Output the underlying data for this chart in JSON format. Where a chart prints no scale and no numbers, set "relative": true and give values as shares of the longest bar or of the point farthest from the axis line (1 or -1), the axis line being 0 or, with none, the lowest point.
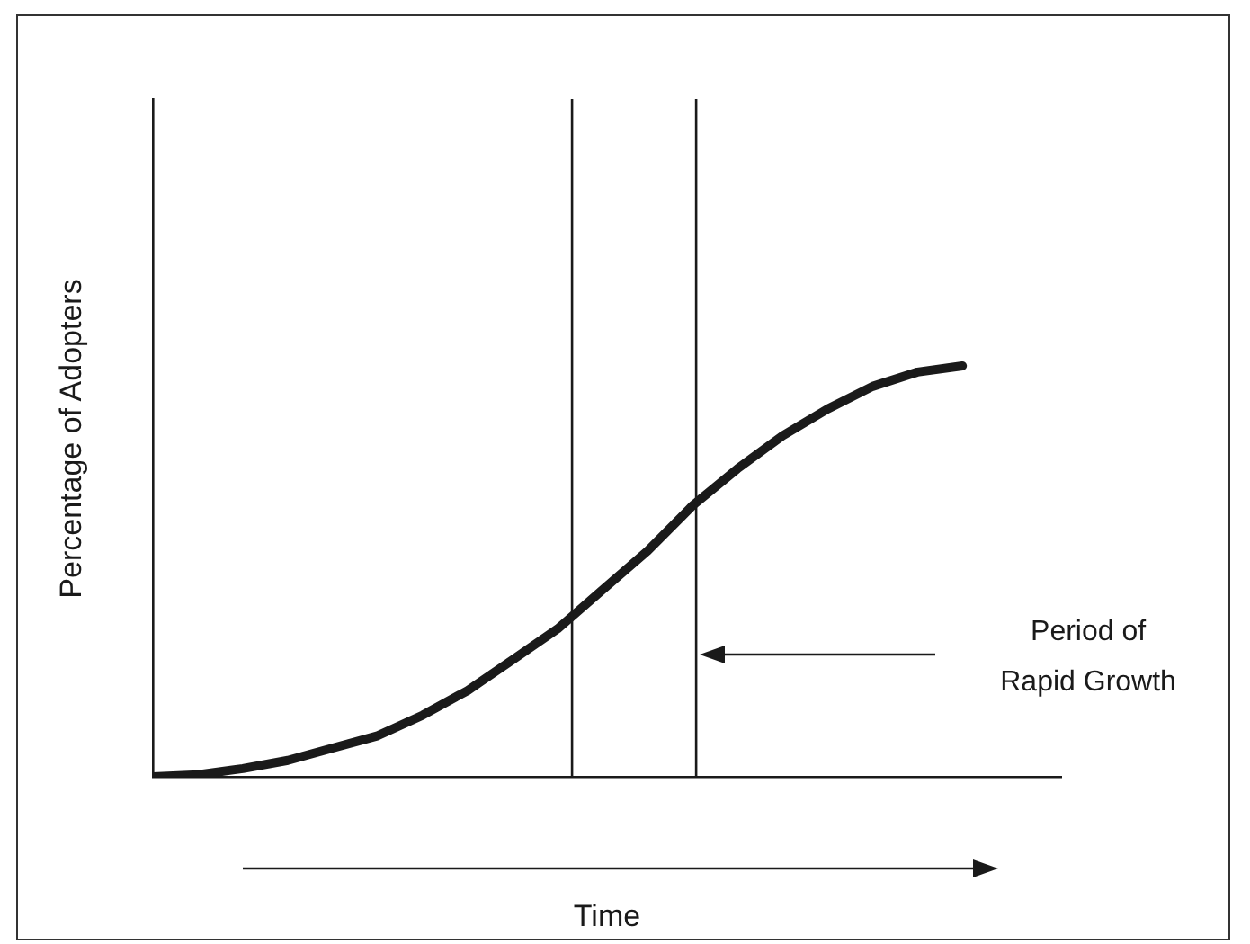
{
  "chart_data": {
    "type": "line",
    "relative": true,
    "xlabel": "Time",
    "ylabel": "Percentage of Adopters",
    "categories": [
      null,
      null,
      null,
      null,
      null,
      null,
      null,
      null,
      null,
      null,
      null,
      null,
      null,
      null,
      null,
      null,
      null,
      null,
      null
    ],
    "series": [
      {
        "color": "#1a1a1a",
        "values": [
          0,
          0.005,
          0.02,
          0.04,
          0.07,
          0.1,
          0.15,
          0.21,
          0.285,
          0.36,
          0.455,
          0.55,
          0.66,
          0.75,
          0.83,
          0.895,
          0.95,
          0.985,
          1
        ]
      }
    ],
    "marker": "none",
    "line_style": "solid",
    "annotations": [
      "Period of Rapid Growth"
    ]
  }
}
